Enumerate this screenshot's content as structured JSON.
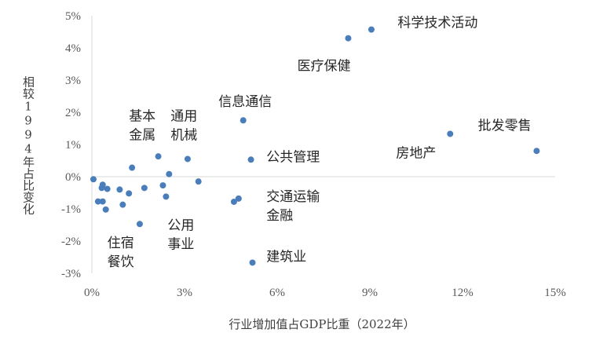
{
  "chart_data": {
    "type": "scatter",
    "xlabel": "行业增加值占GDP比重（2022年）",
    "ylabel": "相较1994年占比变化",
    "xlim": [
      0,
      15
    ],
    "ylim": [
      -3,
      5
    ],
    "x_ticks": [
      "0%",
      "3%",
      "6%",
      "9%",
      "12%",
      "15%"
    ],
    "y_ticks": [
      "5%",
      "4%",
      "3%",
      "2%",
      "1%",
      "0%",
      "-1%",
      "-2%",
      "-3%"
    ],
    "grid": false,
    "marker_color": "#4a7ebb",
    "axis_color": "#d9d9d9",
    "points": [
      {
        "x": 0.05,
        "y": -0.08
      },
      {
        "x": 0.2,
        "y": -0.77
      },
      {
        "x": 0.32,
        "y": -0.35
      },
      {
        "x": 0.35,
        "y": -0.25
      },
      {
        "x": 0.35,
        "y": -0.77
      },
      {
        "x": 0.45,
        "y": -1.02
      },
      {
        "x": 0.5,
        "y": -0.38
      },
      {
        "x": 0.9,
        "y": -0.4
      },
      {
        "x": 1.0,
        "y": -0.87
      },
      {
        "x": 1.2,
        "y": -0.52
      },
      {
        "x": 1.3,
        "y": 0.28
      },
      {
        "x": 1.55,
        "y": -1.47
      },
      {
        "x": 1.7,
        "y": -0.35
      },
      {
        "x": 2.15,
        "y": 0.63
      },
      {
        "x": 2.3,
        "y": -0.27
      },
      {
        "x": 2.4,
        "y": -0.62
      },
      {
        "x": 2.5,
        "y": 0.08
      },
      {
        "x": 3.1,
        "y": 0.55
      },
      {
        "x": 3.45,
        "y": -0.15
      },
      {
        "x": 4.6,
        "y": -0.78
      },
      {
        "x": 4.75,
        "y": -0.68
      },
      {
        "x": 4.9,
        "y": 1.75
      },
      {
        "x": 5.15,
        "y": 0.53
      },
      {
        "x": 5.2,
        "y": -2.67
      },
      {
        "x": 8.3,
        "y": 4.3
      },
      {
        "x": 9.05,
        "y": 4.57
      },
      {
        "x": 11.6,
        "y": 1.33
      },
      {
        "x": 14.4,
        "y": 0.8
      }
    ],
    "annotations": [
      {
        "lines": [
          "科学技术活动"
        ],
        "x": 9.9,
        "y": 4.65
      },
      {
        "lines": [
          "医疗保健"
        ],
        "x": 6.65,
        "y": 3.3
      },
      {
        "lines": [
          "信息通信"
        ],
        "x": 4.1,
        "y": 2.2
      },
      {
        "lines": [
          "批发零售"
        ],
        "x": 12.5,
        "y": 1.45
      },
      {
        "lines": [
          "房地产"
        ],
        "x": 9.85,
        "y": 0.6
      },
      {
        "lines": [
          "公共管理"
        ],
        "x": 5.65,
        "y": 0.47
      },
      {
        "lines": [
          "基本",
          "金属"
        ],
        "x": 1.2,
        "y": 1.75
      },
      {
        "lines": [
          "通用",
          "机械"
        ],
        "x": 2.55,
        "y": 1.75
      },
      {
        "lines": [
          "交通运输",
          "金融"
        ],
        "x": 5.65,
        "y": -0.75
      },
      {
        "lines": [
          "公用",
          "事业"
        ],
        "x": 2.45,
        "y": -1.65
      },
      {
        "lines": [
          "住宿",
          "餐饮"
        ],
        "x": 0.5,
        "y": -2.2
      },
      {
        "lines": [
          "建筑业"
        ],
        "x": 5.65,
        "y": -2.62
      }
    ]
  }
}
